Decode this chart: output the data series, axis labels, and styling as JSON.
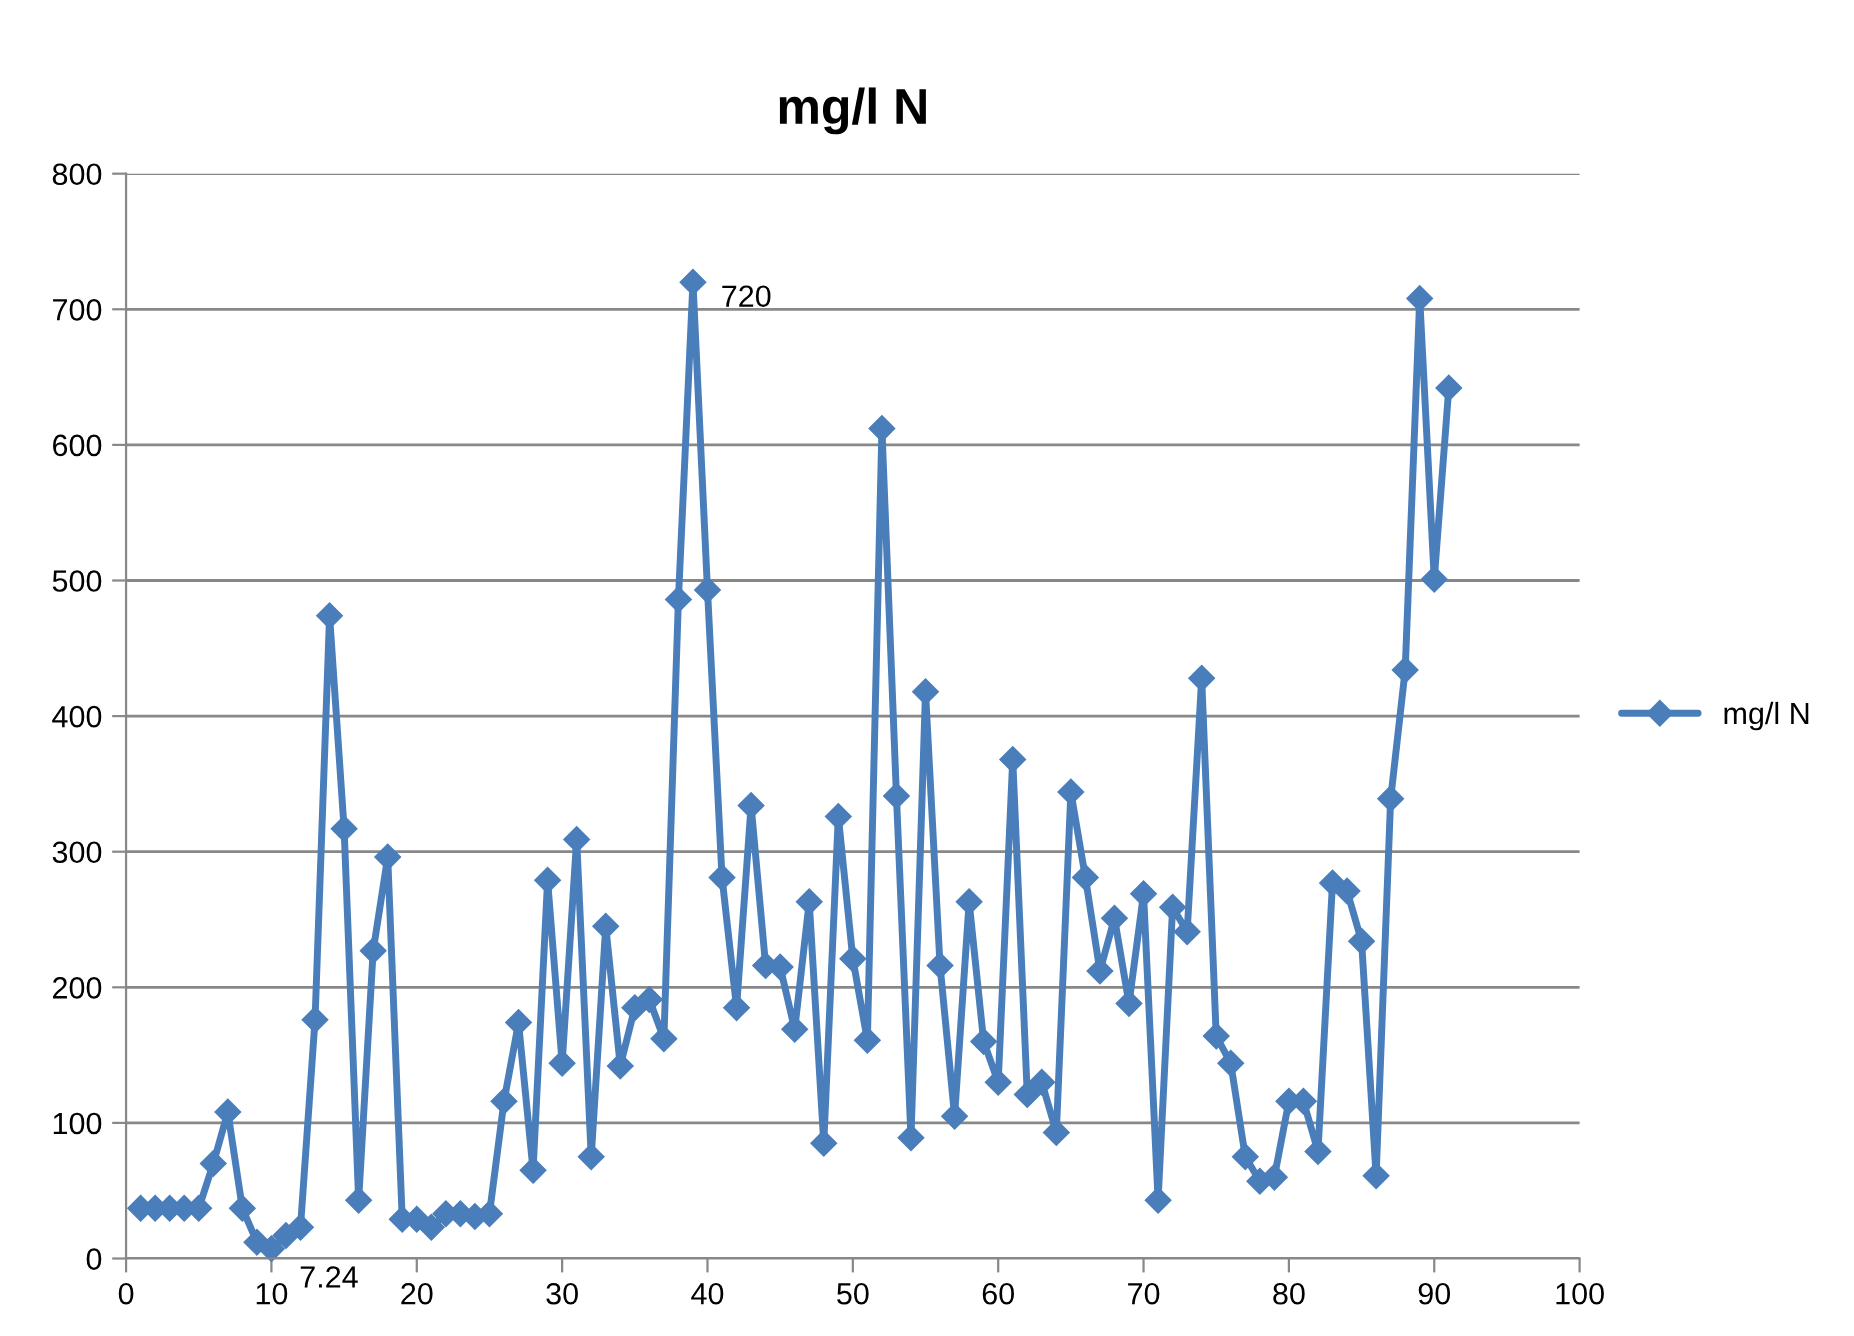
{
  "chart_data": {
    "type": "line",
    "title": "mg/l N",
    "x": [
      1,
      2,
      3,
      4,
      5,
      6,
      7,
      8,
      9,
      10,
      11,
      12,
      13,
      14,
      15,
      16,
      17,
      18,
      19,
      20,
      21,
      22,
      23,
      24,
      25,
      26,
      27,
      28,
      29,
      30,
      31,
      32,
      33,
      34,
      35,
      36,
      37,
      38,
      39,
      40,
      41,
      42,
      43,
      44,
      45,
      46,
      47,
      48,
      49,
      50,
      51,
      52,
      53,
      54,
      55,
      56,
      57,
      58,
      59,
      60,
      61,
      62,
      63,
      64,
      65,
      66,
      67,
      68,
      69,
      70,
      71,
      72,
      73,
      74,
      75,
      76,
      77,
      78,
      79,
      80,
      81,
      82,
      83,
      84,
      85,
      86,
      87,
      88,
      89,
      90,
      91
    ],
    "series": [
      {
        "name": "mg/l N",
        "color": "#4a7ebb",
        "values": [
          37,
          37,
          37,
          37,
          37,
          70,
          108,
          37,
          12,
          7.24,
          17,
          23,
          176,
          474,
          317,
          43,
          227,
          296,
          29,
          29,
          23,
          33,
          33,
          31,
          33,
          116,
          174,
          65,
          279,
          144,
          309,
          75,
          245,
          142,
          185,
          191,
          162,
          486,
          720,
          493,
          281,
          185,
          334,
          216,
          215,
          169,
          263,
          85,
          326,
          221,
          161,
          612,
          341,
          89,
          418,
          216,
          105,
          263,
          160,
          130,
          368,
          121,
          130,
          93,
          344,
          281,
          212,
          251,
          188,
          269,
          43,
          259,
          241,
          428,
          164,
          144,
          75,
          57,
          60,
          116,
          116,
          79,
          277,
          271,
          234,
          61,
          339,
          434,
          708,
          501,
          642
        ],
        "value_labels": [
          null,
          null,
          null,
          null,
          null,
          null,
          null,
          null,
          null,
          "7.24",
          null,
          null,
          null,
          null,
          null,
          null,
          null,
          null,
          null,
          null,
          null,
          null,
          null,
          null,
          null,
          null,
          null,
          null,
          null,
          null,
          null,
          null,
          null,
          null,
          null,
          null,
          null,
          null,
          "720",
          null,
          null,
          null,
          null,
          null,
          null,
          null,
          null,
          null,
          null,
          null,
          null,
          null,
          null,
          null,
          null,
          null,
          null,
          null,
          null,
          null,
          null,
          null,
          null,
          null,
          null,
          null,
          null,
          null,
          null,
          null,
          null,
          null,
          null,
          null,
          null,
          null,
          null,
          null,
          null,
          null,
          null,
          null,
          null,
          null,
          null,
          null,
          null,
          null,
          null,
          null,
          null
        ]
      }
    ],
    "xlim": [
      0,
      100
    ],
    "xticks": [
      0,
      10,
      20,
      30,
      40,
      50,
      60,
      70,
      80,
      90,
      100
    ],
    "ylim": [
      0,
      800
    ],
    "yticks": [
      0,
      100,
      200,
      300,
      400,
      500,
      600,
      700,
      800
    ],
    "grid": "y",
    "legend": "right",
    "marker": "diamond",
    "line_style": "solid"
  }
}
